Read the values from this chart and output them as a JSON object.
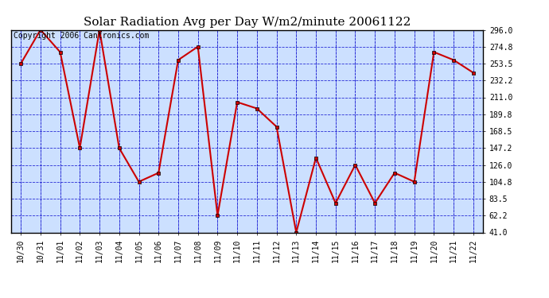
{
  "title": "Solar Radiation Avg per Day W/m2/minute 20061122",
  "copyright_text": "Copyright 2006 Cantronics.com",
  "x_labels": [
    "10/30",
    "10/31",
    "11/01",
    "11/02",
    "11/03",
    "11/04",
    "11/05",
    "11/06",
    "11/07",
    "11/08",
    "11/09",
    "11/10",
    "11/11",
    "11/12",
    "11/13",
    "11/14",
    "11/15",
    "11/16",
    "11/17",
    "11/18",
    "11/19",
    "11/20",
    "11/21",
    "11/22"
  ],
  "y_values": [
    253.5,
    296.0,
    268.0,
    147.2,
    296.0,
    147.2,
    104.8,
    116.0,
    258.0,
    274.8,
    62.2,
    205.0,
    197.0,
    174.0,
    41.0,
    135.0,
    78.0,
    126.0,
    78.0,
    116.0,
    104.8,
    268.0,
    258.0,
    242.0
  ],
  "y_min": 41.0,
  "y_max": 296.0,
  "y_ticks": [
    41.0,
    62.2,
    83.5,
    104.8,
    126.0,
    147.2,
    168.5,
    189.8,
    211.0,
    232.2,
    253.5,
    274.8,
    296.0
  ],
  "line_color": "#cc0000",
  "marker_color": "#cc0000",
  "bg_color": "#cce0ff",
  "grid_color": "#0000cc",
  "border_color": "#000000",
  "title_fontsize": 11,
  "tick_fontsize": 7,
  "copyright_fontsize": 7
}
